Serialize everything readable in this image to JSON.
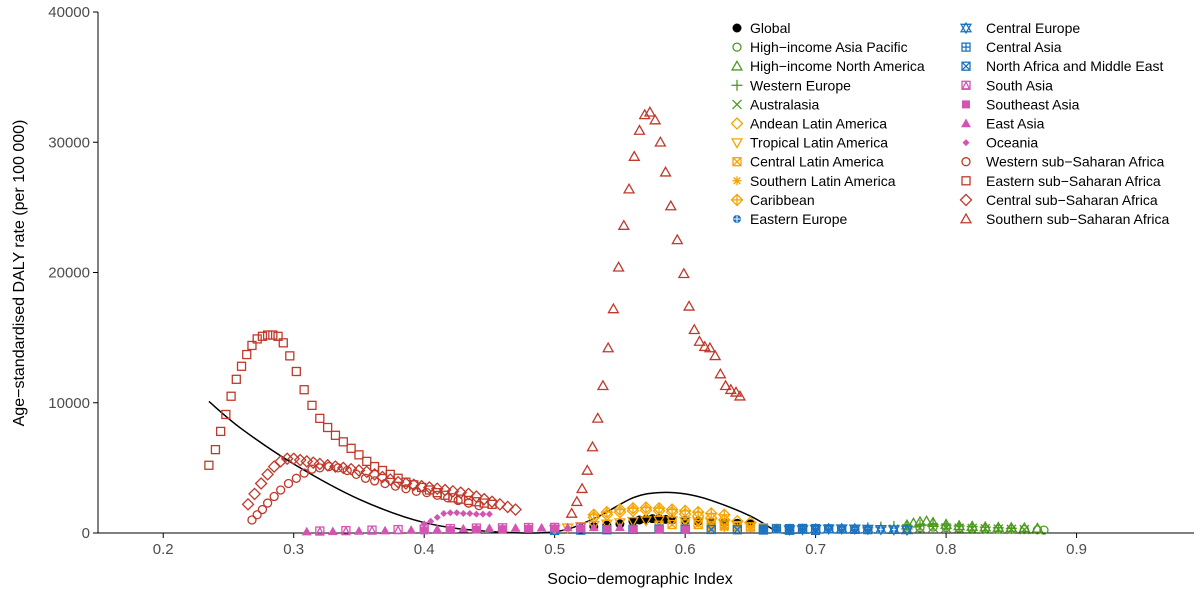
{
  "chart_data": {
    "type": "scatter",
    "title": "",
    "xlabel": "Socio−demographic Index",
    "ylabel": "Age−standardised DALY rate (per 100 000)",
    "xlim": [
      0.15,
      0.99
    ],
    "ylim": [
      0,
      40000
    ],
    "xticks": [
      0.2,
      0.3,
      0.4,
      0.5,
      0.6,
      0.7,
      0.8,
      0.9
    ],
    "xtick_labels": [
      "0.2",
      "0.3",
      "0.4",
      "0.5",
      "0.6",
      "0.7",
      "0.8",
      "0.9"
    ],
    "yticks": [
      0,
      10000,
      20000,
      30000,
      40000
    ],
    "ytick_labels": [
      "0",
      "10000",
      "20000",
      "30000",
      "40000"
    ],
    "grid": false,
    "legend_position": "top-right",
    "expected_curve": {
      "x": [
        0.235,
        0.26,
        0.3,
        0.35,
        0.4,
        0.45,
        0.5,
        0.53,
        0.56,
        0.58,
        0.6,
        0.62,
        0.65,
        0.67
      ],
      "y": [
        10100,
        8000,
        5300,
        2600,
        800,
        120,
        100,
        1100,
        2700,
        3100,
        3000,
        2500,
        1300,
        100
      ]
    },
    "series": [
      {
        "name": "Global",
        "marker": "circle-filled",
        "color": "#000000",
        "x": [
          0.53,
          0.54,
          0.55,
          0.56,
          0.565,
          0.57,
          0.575,
          0.58,
          0.585,
          0.59,
          0.6,
          0.61,
          0.62,
          0.63,
          0.64,
          0.65
        ],
        "y": [
          500,
          600,
          700,
          900,
          1000,
          1050,
          1100,
          1100,
          1050,
          1000,
          950,
          900,
          850,
          800,
          750,
          700
        ]
      },
      {
        "name": "High−income Asia Pacific",
        "marker": "circle-open",
        "color": "#4d9a1f",
        "x": [
          0.77,
          0.78,
          0.79,
          0.8,
          0.81,
          0.82,
          0.83,
          0.84,
          0.85,
          0.86,
          0.87,
          0.875
        ],
        "y": [
          350,
          400,
          450,
          420,
          380,
          350,
          320,
          300,
          280,
          260,
          240,
          220
        ]
      },
      {
        "name": "High−income North America",
        "marker": "triangle-up-open",
        "color": "#4d9a1f",
        "x": [
          0.77,
          0.775,
          0.78,
          0.785,
          0.79,
          0.8,
          0.81,
          0.82,
          0.83,
          0.84,
          0.85,
          0.86,
          0.87
        ],
        "y": [
          600,
          750,
          850,
          900,
          800,
          650,
          550,
          500,
          450,
          420,
          400,
          380,
          350
        ]
      },
      {
        "name": "Western Europe",
        "marker": "plus",
        "color": "#4d9a1f",
        "x": [
          0.74,
          0.75,
          0.76,
          0.77,
          0.78,
          0.79,
          0.8,
          0.81,
          0.82,
          0.83,
          0.84,
          0.85
        ],
        "y": [
          400,
          450,
          500,
          550,
          600,
          650,
          600,
          550,
          500,
          450,
          400,
          350
        ]
      },
      {
        "name": "Australasia",
        "marker": "cross",
        "color": "#4d9a1f",
        "x": [
          0.76,
          0.77,
          0.78,
          0.79,
          0.8,
          0.81,
          0.82,
          0.83,
          0.84,
          0.85,
          0.86
        ],
        "y": [
          300,
          350,
          400,
          420,
          400,
          380,
          350,
          330,
          300,
          280,
          260
        ]
      },
      {
        "name": "Andean Latin America",
        "marker": "diamond-open",
        "color": "#f5a300",
        "x": [
          0.53,
          0.54,
          0.55,
          0.56,
          0.57,
          0.58,
          0.59,
          0.6,
          0.61,
          0.62,
          0.63,
          0.64,
          0.65
        ],
        "y": [
          1200,
          1400,
          1600,
          1700,
          1750,
          1700,
          1600,
          1450,
          1300,
          1150,
          1000,
          900,
          800
        ]
      },
      {
        "name": "Tropical Latin America",
        "marker": "triangle-down-open",
        "color": "#f5a300",
        "x": [
          0.5,
          0.51,
          0.52,
          0.53,
          0.54,
          0.55,
          0.56,
          0.57,
          0.58,
          0.59,
          0.6,
          0.61,
          0.62,
          0.63,
          0.64,
          0.65
        ],
        "y": [
          300,
          400,
          500,
          600,
          700,
          800,
          900,
          950,
          1000,
          950,
          900,
          850,
          800,
          700,
          600,
          500
        ]
      },
      {
        "name": "Central Latin America",
        "marker": "square-x",
        "color": "#f5a300",
        "x": [
          0.58,
          0.59,
          0.6,
          0.61,
          0.62,
          0.63,
          0.64,
          0.65,
          0.66,
          0.67,
          0.68,
          0.69,
          0.7
        ],
        "y": [
          600,
          650,
          700,
          650,
          600,
          550,
          500,
          450,
          400,
          350,
          300,
          300,
          250
        ]
      },
      {
        "name": "Southern Latin America",
        "marker": "asterisk",
        "color": "#f5a300",
        "x": [
          0.62,
          0.63,
          0.64,
          0.65,
          0.66,
          0.67,
          0.68,
          0.69,
          0.7,
          0.71,
          0.72
        ],
        "y": [
          400,
          420,
          450,
          430,
          400,
          380,
          350,
          320,
          300,
          280,
          260
        ]
      },
      {
        "name": "Caribbean",
        "marker": "diamond-plus",
        "color": "#f5a300",
        "x": [
          0.53,
          0.54,
          0.55,
          0.56,
          0.57,
          0.58,
          0.59,
          0.6,
          0.61,
          0.62,
          0.63
        ],
        "y": [
          1400,
          1600,
          1800,
          1900,
          1950,
          1900,
          1800,
          1700,
          1600,
          1500,
          1400
        ]
      },
      {
        "name": "Eastern Europe",
        "marker": "circle-plus",
        "color": "#1c73c1",
        "x": [
          0.66,
          0.67,
          0.68,
          0.69,
          0.7,
          0.71,
          0.72,
          0.73,
          0.74,
          0.75,
          0.76
        ],
        "y": [
          300,
          320,
          350,
          380,
          400,
          380,
          350,
          330,
          300,
          280,
          260
        ]
      },
      {
        "name": "Central Europe",
        "marker": "star-david",
        "color": "#1c73c1",
        "x": [
          0.68,
          0.69,
          0.7,
          0.71,
          0.72,
          0.73,
          0.74,
          0.75,
          0.76,
          0.77
        ],
        "y": [
          250,
          270,
          300,
          320,
          330,
          320,
          300,
          280,
          260,
          240
        ]
      },
      {
        "name": "Central Asia",
        "marker": "square-plus",
        "color": "#1c73c1",
        "x": [
          0.66,
          0.67,
          0.68,
          0.69,
          0.7,
          0.71,
          0.72,
          0.73,
          0.74
        ],
        "y": [
          300,
          320,
          340,
          350,
          340,
          320,
          300,
          280,
          260
        ]
      },
      {
        "name": "North Africa and Middle East",
        "marker": "square-x",
        "color": "#1c73c1",
        "x": [
          0.5,
          0.52,
          0.54,
          0.56,
          0.58,
          0.6,
          0.62,
          0.64,
          0.66,
          0.68,
          0.7
        ],
        "y": [
          200,
          220,
          250,
          280,
          300,
          290,
          270,
          250,
          230,
          210,
          200
        ]
      },
      {
        "name": "South Asia",
        "marker": "square-triangle",
        "color": "#d454b4",
        "x": [
          0.32,
          0.34,
          0.36,
          0.38,
          0.4,
          0.42,
          0.44,
          0.46,
          0.48,
          0.5,
          0.52
        ],
        "y": [
          150,
          180,
          220,
          260,
          300,
          340,
          380,
          400,
          420,
          430,
          440
        ]
      },
      {
        "name": "Southeast Asia",
        "marker": "square-filled",
        "color": "#d454b4",
        "x": [
          0.4,
          0.42,
          0.44,
          0.46,
          0.48,
          0.5,
          0.52,
          0.54,
          0.56,
          0.58,
          0.6
        ],
        "y": [
          200,
          230,
          260,
          290,
          320,
          350,
          330,
          300,
          280,
          260,
          240
        ]
      },
      {
        "name": "East Asia",
        "marker": "triangle-filled",
        "color": "#d454b4",
        "x": [
          0.31,
          0.33,
          0.35,
          0.37,
          0.39,
          0.41,
          0.43,
          0.45,
          0.47,
          0.49,
          0.51,
          0.53,
          0.55
        ],
        "y": [
          100,
          120,
          150,
          180,
          220,
          280,
          320,
          360,
          380,
          400,
          420,
          430,
          440
        ]
      },
      {
        "name": "Oceania",
        "marker": "diamond-filled",
        "color": "#d454b4",
        "x": [
          0.4,
          0.405,
          0.41,
          0.415,
          0.42,
          0.425,
          0.43,
          0.435,
          0.44,
          0.445,
          0.45
        ],
        "y": [
          700,
          900,
          1200,
          1500,
          1550,
          1550,
          1500,
          1500,
          1450,
          1450,
          1450
        ]
      },
      {
        "name": "Western sub−Saharan Africa",
        "marker": "circle-open",
        "color": "#c0392b",
        "x": [
          0.268,
          0.272,
          0.276,
          0.28,
          0.285,
          0.29,
          0.296,
          0.302,
          0.308,
          0.314,
          0.32,
          0.327,
          0.334,
          0.341,
          0.348,
          0.355,
          0.362,
          0.37,
          0.378,
          0.386,
          0.394,
          0.402,
          0.41,
          0.418,
          0.426,
          0.434,
          0.442
        ],
        "y": [
          1000,
          1400,
          1800,
          2300,
          2800,
          3300,
          3800,
          4200,
          4600,
          4900,
          5000,
          5100,
          5000,
          4800,
          4500,
          4200,
          4000,
          3800,
          3600,
          3400,
          3200,
          3100,
          2900,
          2700,
          2500,
          2300,
          2100
        ]
      },
      {
        "name": "Eastern sub−Saharan Africa",
        "marker": "square-open",
        "color": "#c0392b",
        "x": [
          0.235,
          0.24,
          0.244,
          0.248,
          0.252,
          0.256,
          0.26,
          0.264,
          0.268,
          0.272,
          0.276,
          0.28,
          0.284,
          0.288,
          0.292,
          0.297,
          0.302,
          0.308,
          0.314,
          0.32,
          0.326,
          0.332,
          0.338,
          0.344,
          0.35,
          0.356,
          0.362,
          0.368,
          0.374,
          0.38,
          0.386,
          0.392,
          0.398,
          0.404,
          0.41,
          0.416,
          0.422,
          0.428,
          0.434,
          0.44,
          0.446,
          0.452
        ],
        "y": [
          5200,
          6400,
          7800,
          9100,
          10500,
          11800,
          12800,
          13700,
          14400,
          14900,
          15100,
          15200,
          15200,
          15100,
          14600,
          13600,
          12400,
          11000,
          9800,
          8800,
          8100,
          7500,
          7000,
          6500,
          6000,
          5500,
          5100,
          4800,
          4500,
          4200,
          3900,
          3700,
          3500,
          3300,
          3100,
          2900,
          2700,
          2600,
          2500,
          2400,
          2300,
          2200
        ]
      },
      {
        "name": "Central sub−Saharan Africa",
        "marker": "diamond-open",
        "color": "#c0392b",
        "x": [
          0.265,
          0.27,
          0.275,
          0.28,
          0.285,
          0.29,
          0.295,
          0.3,
          0.305,
          0.31,
          0.315,
          0.32,
          0.326,
          0.332,
          0.338,
          0.344,
          0.35,
          0.356,
          0.362,
          0.368,
          0.374,
          0.38,
          0.386,
          0.392,
          0.398,
          0.404,
          0.41,
          0.416,
          0.422,
          0.428,
          0.434,
          0.44,
          0.446,
          0.452,
          0.458,
          0.464,
          0.47
        ],
        "y": [
          2200,
          3000,
          3800,
          4500,
          5100,
          5500,
          5700,
          5700,
          5600,
          5500,
          5400,
          5300,
          5200,
          5100,
          5000,
          4900,
          4800,
          4700,
          4500,
          4300,
          4100,
          3900,
          3800,
          3700,
          3600,
          3500,
          3400,
          3300,
          3200,
          3100,
          3000,
          2800,
          2600,
          2400,
          2200,
          2000,
          1800
        ]
      },
      {
        "name": "Southern sub−Saharan Africa",
        "marker": "triangle-up-open",
        "color": "#c0392b",
        "x": [
          0.513,
          0.517,
          0.521,
          0.525,
          0.529,
          0.533,
          0.537,
          0.541,
          0.545,
          0.549,
          0.553,
          0.557,
          0.561,
          0.565,
          0.569,
          0.573,
          0.577,
          0.581,
          0.585,
          0.589,
          0.594,
          0.599,
          0.603,
          0.607,
          0.611,
          0.615,
          0.619,
          0.623,
          0.627,
          0.631,
          0.635,
          0.639,
          0.642
        ],
        "y": [
          1500,
          2400,
          3400,
          4800,
          6600,
          8800,
          11300,
          14200,
          17200,
          20400,
          23600,
          26400,
          28900,
          30900,
          32100,
          32300,
          31700,
          30000,
          27700,
          25100,
          22500,
          19900,
          17400,
          15600,
          14700,
          14300,
          14200,
          13600,
          12200,
          11300,
          11000,
          10800,
          10500
        ]
      }
    ]
  }
}
